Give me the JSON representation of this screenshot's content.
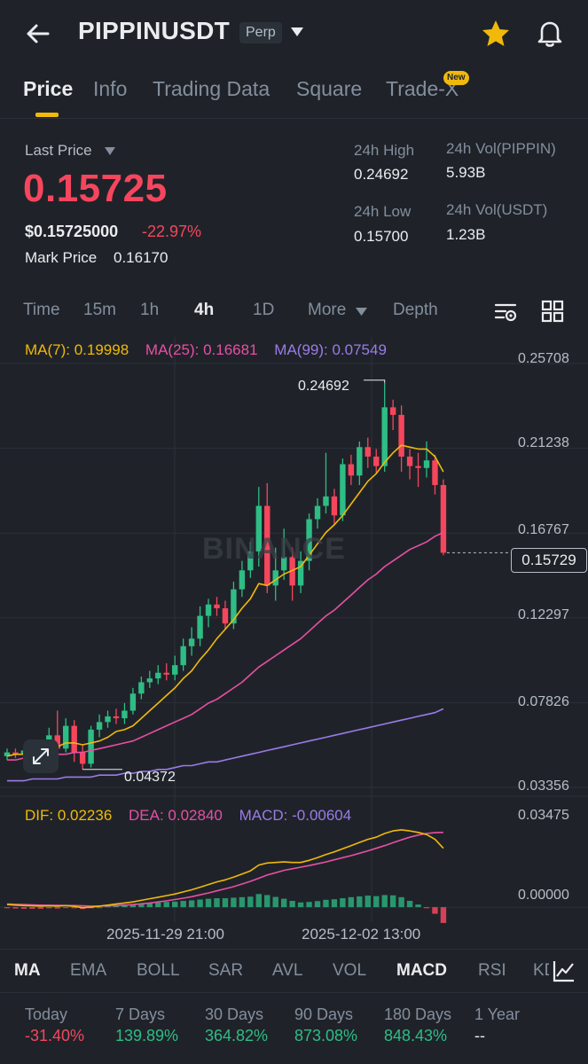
{
  "header": {
    "title": "PIPPINUSDT",
    "badge": "Perp"
  },
  "tabs": [
    {
      "label": "Price",
      "active": true
    },
    {
      "label": "Info"
    },
    {
      "label": "Trading Data"
    },
    {
      "label": "Square"
    },
    {
      "label": "Trade-X",
      "badge": "New"
    }
  ],
  "stats": {
    "last_price_label": "Last Price",
    "last_price": "0.15725",
    "usd_price": "$0.15725000",
    "change_pct": "-22.97%",
    "mark_label": "Mark Price",
    "mark_price": "0.16170",
    "high_label": "24h High",
    "high": "0.24692",
    "low_label": "24h Low",
    "low": "0.15700",
    "vol_base_label": "24h Vol(PIPPIN)",
    "vol_base": "5.93B",
    "vol_quote_label": "24h Vol(USDT)",
    "vol_quote": "1.23B"
  },
  "intervals": {
    "items": [
      "Time",
      "15m",
      "1h",
      "4h",
      "1D",
      "More",
      "Depth"
    ],
    "active": "4h"
  },
  "chart_data": [
    {
      "type": "candlestick",
      "title": "",
      "watermark": "BINANCE",
      "ma_legend": {
        "ma7": "MA(7): 0.19998",
        "ma25": "MA(25): 0.16681",
        "ma99": "MA(99): 0.07549"
      },
      "y_ticks": [
        "0.25708",
        "0.21238",
        "0.16767",
        "0.12297",
        "0.07826",
        "0.03356"
      ],
      "ylim": [
        0.03356,
        0.25708
      ],
      "x_ticks": [
        "2025-11-29 21:00",
        "2025-12-02 13:00"
      ],
      "high_marker": "0.24692",
      "low_marker": "0.04372",
      "current_price_tag": "0.15729",
      "candles": [
        {
          "o": 0.05,
          "c": 0.052,
          "h": 0.054,
          "l": 0.048
        },
        {
          "o": 0.052,
          "c": 0.051,
          "h": 0.054,
          "l": 0.049
        },
        {
          "o": 0.051,
          "c": 0.053,
          "h": 0.055,
          "l": 0.049
        },
        {
          "o": 0.053,
          "c": 0.052,
          "h": 0.056,
          "l": 0.05
        },
        {
          "o": 0.052,
          "c": 0.055,
          "h": 0.058,
          "l": 0.049
        },
        {
          "o": 0.055,
          "c": 0.061,
          "h": 0.065,
          "l": 0.052
        },
        {
          "o": 0.061,
          "c": 0.054,
          "h": 0.074,
          "l": 0.051
        },
        {
          "o": 0.054,
          "c": 0.066,
          "h": 0.07,
          "l": 0.052
        },
        {
          "o": 0.066,
          "c": 0.052,
          "h": 0.069,
          "l": 0.047
        },
        {
          "o": 0.052,
          "c": 0.046,
          "h": 0.056,
          "l": 0.043
        },
        {
          "o": 0.046,
          "c": 0.064,
          "h": 0.066,
          "l": 0.044
        },
        {
          "o": 0.064,
          "c": 0.068,
          "h": 0.072,
          "l": 0.06
        },
        {
          "o": 0.068,
          "c": 0.071,
          "h": 0.074,
          "l": 0.065
        },
        {
          "o": 0.071,
          "c": 0.07,
          "h": 0.075,
          "l": 0.067
        },
        {
          "o": 0.07,
          "c": 0.074,
          "h": 0.078,
          "l": 0.067
        },
        {
          "o": 0.074,
          "c": 0.083,
          "h": 0.086,
          "l": 0.072
        },
        {
          "o": 0.083,
          "c": 0.089,
          "h": 0.092,
          "l": 0.08
        },
        {
          "o": 0.089,
          "c": 0.091,
          "h": 0.095,
          "l": 0.086
        },
        {
          "o": 0.091,
          "c": 0.094,
          "h": 0.098,
          "l": 0.088
        },
        {
          "o": 0.094,
          "c": 0.093,
          "h": 0.099,
          "l": 0.09
        },
        {
          "o": 0.093,
          "c": 0.098,
          "h": 0.103,
          "l": 0.09
        },
        {
          "o": 0.098,
          "c": 0.108,
          "h": 0.112,
          "l": 0.095
        },
        {
          "o": 0.108,
          "c": 0.112,
          "h": 0.118,
          "l": 0.103
        },
        {
          "o": 0.112,
          "c": 0.124,
          "h": 0.129,
          "l": 0.108
        },
        {
          "o": 0.124,
          "c": 0.13,
          "h": 0.133,
          "l": 0.118
        },
        {
          "o": 0.13,
          "c": 0.128,
          "h": 0.134,
          "l": 0.124
        },
        {
          "o": 0.128,
          "c": 0.12,
          "h": 0.132,
          "l": 0.117
        },
        {
          "o": 0.12,
          "c": 0.138,
          "h": 0.142,
          "l": 0.117
        },
        {
          "o": 0.138,
          "c": 0.148,
          "h": 0.153,
          "l": 0.134
        },
        {
          "o": 0.148,
          "c": 0.158,
          "h": 0.163,
          "l": 0.144
        },
        {
          "o": 0.158,
          "c": 0.182,
          "h": 0.192,
          "l": 0.15
        },
        {
          "o": 0.182,
          "c": 0.14,
          "h": 0.194,
          "l": 0.136
        },
        {
          "o": 0.14,
          "c": 0.148,
          "h": 0.16,
          "l": 0.132
        },
        {
          "o": 0.148,
          "c": 0.155,
          "h": 0.17,
          "l": 0.143
        },
        {
          "o": 0.155,
          "c": 0.14,
          "h": 0.16,
          "l": 0.132
        },
        {
          "o": 0.14,
          "c": 0.153,
          "h": 0.158,
          "l": 0.136
        },
        {
          "o": 0.153,
          "c": 0.175,
          "h": 0.178,
          "l": 0.148
        },
        {
          "o": 0.175,
          "c": 0.182,
          "h": 0.186,
          "l": 0.17
        },
        {
          "o": 0.182,
          "c": 0.187,
          "h": 0.21,
          "l": 0.178
        },
        {
          "o": 0.187,
          "c": 0.177,
          "h": 0.191,
          "l": 0.172
        },
        {
          "o": 0.177,
          "c": 0.204,
          "h": 0.207,
          "l": 0.174
        },
        {
          "o": 0.204,
          "c": 0.198,
          "h": 0.209,
          "l": 0.193
        },
        {
          "o": 0.198,
          "c": 0.213,
          "h": 0.216,
          "l": 0.193
        },
        {
          "o": 0.213,
          "c": 0.208,
          "h": 0.218,
          "l": 0.202
        },
        {
          "o": 0.208,
          "c": 0.203,
          "h": 0.212,
          "l": 0.199
        },
        {
          "o": 0.203,
          "c": 0.234,
          "h": 0.24692,
          "l": 0.2
        },
        {
          "o": 0.234,
          "c": 0.23,
          "h": 0.238,
          "l": 0.222
        },
        {
          "o": 0.23,
          "c": 0.208,
          "h": 0.235,
          "l": 0.2
        },
        {
          "o": 0.208,
          "c": 0.203,
          "h": 0.212,
          "l": 0.196
        },
        {
          "o": 0.203,
          "c": 0.202,
          "h": 0.21,
          "l": 0.192
        },
        {
          "o": 0.202,
          "c": 0.206,
          "h": 0.216,
          "l": 0.197
        },
        {
          "o": 0.206,
          "c": 0.193,
          "h": 0.209,
          "l": 0.188
        },
        {
          "o": 0.193,
          "c": 0.15729,
          "h": 0.196,
          "l": 0.156
        }
      ],
      "ma7": [
        0.05,
        0.051,
        0.051,
        0.052,
        0.052,
        0.054,
        0.055,
        0.057,
        0.057,
        0.056,
        0.057,
        0.058,
        0.06,
        0.063,
        0.064,
        0.066,
        0.07,
        0.074,
        0.078,
        0.082,
        0.086,
        0.091,
        0.095,
        0.101,
        0.106,
        0.112,
        0.117,
        0.122,
        0.128,
        0.133,
        0.141,
        0.14,
        0.143,
        0.146,
        0.148,
        0.15,
        0.156,
        0.162,
        0.168,
        0.172,
        0.177,
        0.183,
        0.189,
        0.195,
        0.199,
        0.205,
        0.21,
        0.214,
        0.213,
        0.212,
        0.212,
        0.208,
        0.2
      ],
      "ma25": [
        0.048,
        0.048,
        0.049,
        0.049,
        0.05,
        0.05,
        0.051,
        0.051,
        0.052,
        0.052,
        0.053,
        0.054,
        0.055,
        0.056,
        0.057,
        0.058,
        0.06,
        0.062,
        0.064,
        0.066,
        0.068,
        0.07,
        0.072,
        0.075,
        0.078,
        0.08,
        0.083,
        0.086,
        0.089,
        0.093,
        0.097,
        0.1,
        0.103,
        0.106,
        0.109,
        0.112,
        0.116,
        0.12,
        0.124,
        0.127,
        0.131,
        0.135,
        0.139,
        0.143,
        0.146,
        0.15,
        0.153,
        0.156,
        0.159,
        0.161,
        0.163,
        0.166,
        0.168
      ],
      "ma99": [
        0.037,
        0.037,
        0.037,
        0.038,
        0.038,
        0.038,
        0.038,
        0.039,
        0.039,
        0.039,
        0.039,
        0.04,
        0.04,
        0.04,
        0.041,
        0.041,
        0.042,
        0.042,
        0.043,
        0.043,
        0.044,
        0.045,
        0.045,
        0.046,
        0.047,
        0.047,
        0.048,
        0.049,
        0.05,
        0.051,
        0.052,
        0.053,
        0.054,
        0.055,
        0.056,
        0.057,
        0.058,
        0.059,
        0.06,
        0.061,
        0.062,
        0.063,
        0.064,
        0.065,
        0.066,
        0.067,
        0.068,
        0.069,
        0.07,
        0.071,
        0.072,
        0.073,
        0.075
      ]
    },
    {
      "type": "macd",
      "legend": {
        "dif": "DIF: 0.02236",
        "dea": "DEA: 0.02840",
        "macd": "MACD: -0.00604"
      },
      "y_ticks": [
        "0.03475",
        "0.00000"
      ],
      "ylim": [
        -0.004,
        0.03475
      ],
      "dif": [
        0.001,
        0.0008,
        0.0006,
        0.0005,
        0.0004,
        0.0005,
        0.0004,
        0.0006,
        0.0003,
        -0.0002,
        0.0,
        0.0004,
        0.0008,
        0.0012,
        0.0016,
        0.002,
        0.0026,
        0.0032,
        0.0038,
        0.0044,
        0.005,
        0.0058,
        0.0066,
        0.0076,
        0.0086,
        0.0096,
        0.0104,
        0.0114,
        0.0126,
        0.0138,
        0.016,
        0.0168,
        0.017,
        0.0172,
        0.017,
        0.017,
        0.0178,
        0.0188,
        0.02,
        0.021,
        0.0222,
        0.0234,
        0.0246,
        0.0258,
        0.0266,
        0.028,
        0.029,
        0.0294,
        0.029,
        0.0284,
        0.0276,
        0.0258,
        0.0224
      ],
      "dea": [
        0.0012,
        0.0011,
        0.001,
        0.0009,
        0.0008,
        0.0007,
        0.0007,
        0.0006,
        0.0006,
        0.0005,
        0.0004,
        0.0004,
        0.0005,
        0.0006,
        0.0008,
        0.001,
        0.0013,
        0.0016,
        0.002,
        0.0024,
        0.0029,
        0.0034,
        0.004,
        0.0047,
        0.0054,
        0.0062,
        0.007,
        0.0078,
        0.0088,
        0.0098,
        0.011,
        0.0122,
        0.0131,
        0.014,
        0.0146,
        0.0152,
        0.0158,
        0.0165,
        0.0172,
        0.018,
        0.0188,
        0.0196,
        0.0205,
        0.0214,
        0.0224,
        0.0234,
        0.0245,
        0.0256,
        0.0266,
        0.0274,
        0.028,
        0.0283,
        0.0284
      ],
      "hist": [
        -0.0004,
        -0.0005,
        -0.0006,
        -0.0006,
        -0.0006,
        -0.0004,
        -0.0005,
        -0.0001,
        -0.0004,
        -0.0007,
        -0.0004,
        0.0,
        0.0003,
        0.0006,
        0.0008,
        0.001,
        0.0013,
        0.0016,
        0.0018,
        0.002,
        0.0021,
        0.0024,
        0.0026,
        0.0029,
        0.0032,
        0.0034,
        0.0034,
        0.0036,
        0.0038,
        0.004,
        0.005,
        0.0046,
        0.0039,
        0.0032,
        0.0024,
        0.0018,
        0.002,
        0.0023,
        0.0028,
        0.003,
        0.0034,
        0.0038,
        0.0041,
        0.0044,
        0.0042,
        0.0046,
        0.0045,
        0.0038,
        0.0024,
        0.001,
        -0.0004,
        -0.0025,
        -0.006
      ]
    }
  ],
  "indicators": {
    "items": [
      "MA",
      "EMA",
      "BOLL",
      "SAR",
      "AVL",
      "VOL",
      "MACD",
      "RSI",
      "KDJ"
    ],
    "active_main": "MA",
    "active_sub": "MACD"
  },
  "performance": [
    {
      "label": "Today",
      "value": "-31.40%"
    },
    {
      "label": "7 Days",
      "value": "139.89%"
    },
    {
      "label": "30 Days",
      "value": "364.82%"
    },
    {
      "label": "90 Days",
      "value": "873.08%"
    },
    {
      "label": "180 Days",
      "value": "848.43%"
    },
    {
      "label": "1 Year",
      "value": "--"
    }
  ],
  "colors": {
    "up": "#2ebd85",
    "down": "#f6465d",
    "accent": "#f0b90b",
    "ma7": "#f0b90b",
    "ma25": "#e84fa4",
    "ma99": "#9b7be8"
  }
}
